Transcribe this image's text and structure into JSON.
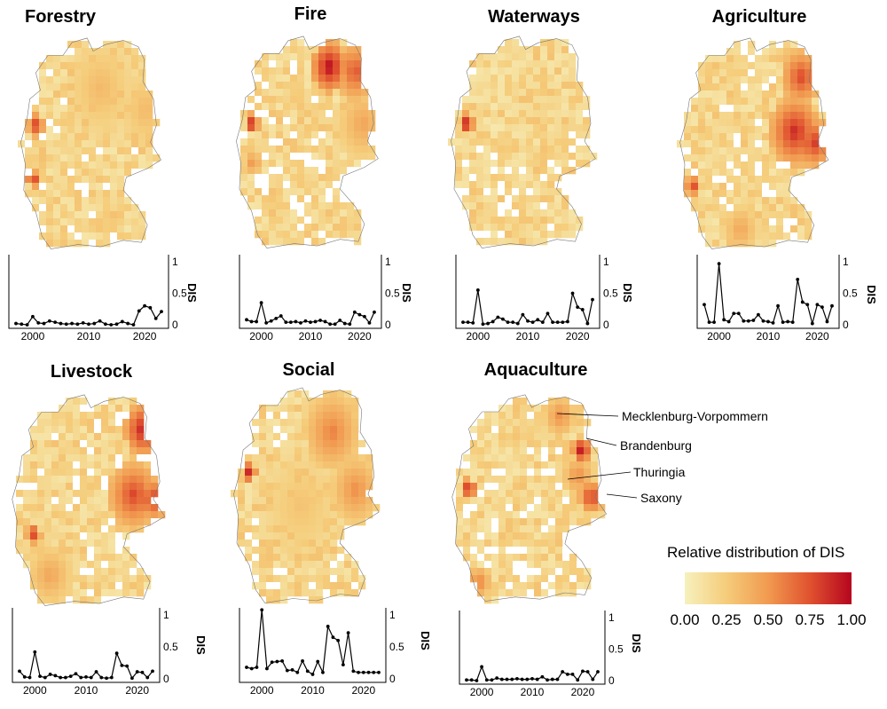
{
  "chart_data": [
    {
      "type": "line",
      "title": "Forestry",
      "ylabel": "DIS",
      "ylim": [
        0,
        1
      ],
      "x": [
        1997,
        1998,
        1999,
        2000,
        2001,
        2002,
        2003,
        2004,
        2005,
        2006,
        2007,
        2008,
        2009,
        2010,
        2011,
        2012,
        2013,
        2014,
        2015,
        2016,
        2017,
        2018,
        2019,
        2020,
        2021,
        2022,
        2023
      ],
      "y": [
        0.02,
        0.01,
        0.0,
        0.13,
        0.03,
        0.02,
        0.06,
        0.04,
        0.02,
        0.01,
        0.02,
        0.01,
        0.03,
        0.01,
        0.02,
        0.06,
        0.01,
        0.0,
        0.01,
        0.05,
        0.02,
        0.0,
        0.22,
        0.3,
        0.27,
        0.1,
        0.21
      ],
      "xticks": [
        "2000",
        "2010",
        "2020"
      ],
      "yticks": [
        "0",
        "0.5",
        "1"
      ]
    },
    {
      "type": "line",
      "title": "Fire",
      "ylabel": "DIS",
      "ylim": [
        0,
        1
      ],
      "x": [
        1997,
        1998,
        1999,
        2000,
        2001,
        2002,
        2003,
        2004,
        2005,
        2006,
        2007,
        2008,
        2009,
        2010,
        2011,
        2012,
        2013,
        2014,
        2015,
        2016,
        2017,
        2018,
        2019,
        2020,
        2021,
        2022,
        2023
      ],
      "y": [
        0.08,
        0.05,
        0.05,
        0.35,
        0.03,
        0.06,
        0.1,
        0.14,
        0.04,
        0.04,
        0.05,
        0.03,
        0.06,
        0.04,
        0.05,
        0.07,
        0.05,
        0.01,
        0.01,
        0.07,
        0.02,
        0.01,
        0.2,
        0.16,
        0.13,
        0.03,
        0.2
      ],
      "xticks": [
        "2000",
        "2010",
        "2020"
      ],
      "yticks": [
        "0",
        "0.5",
        "1"
      ]
    },
    {
      "type": "line",
      "title": "Waterways",
      "ylabel": "DIS",
      "ylim": [
        0,
        1
      ],
      "x": [
        1997,
        1998,
        1999,
        2000,
        2001,
        2002,
        2003,
        2004,
        2005,
        2006,
        2007,
        2008,
        2009,
        2010,
        2011,
        2012,
        2013,
        2014,
        2015,
        2016,
        2017,
        2018,
        2019,
        2020,
        2021,
        2022,
        2023
      ],
      "y": [
        0.04,
        0.04,
        0.03,
        0.55,
        0.01,
        0.02,
        0.05,
        0.12,
        0.09,
        0.04,
        0.04,
        0.02,
        0.16,
        0.06,
        0.04,
        0.08,
        0.04,
        0.18,
        0.04,
        0.04,
        0.04,
        0.05,
        0.5,
        0.28,
        0.24,
        0.02,
        0.4
      ],
      "xticks": [
        "2000",
        "2010",
        "2020"
      ],
      "yticks": [
        "0",
        "0.5",
        "1"
      ]
    },
    {
      "type": "line",
      "title": "Agriculture",
      "ylabel": "DIS",
      "ylim": [
        0,
        1
      ],
      "x": [
        1997,
        1998,
        1999,
        2000,
        2001,
        2002,
        2003,
        2004,
        2005,
        2006,
        2007,
        2008,
        2009,
        2010,
        2011,
        2012,
        2013,
        2014,
        2015,
        2016,
        2017,
        2018,
        2019,
        2020,
        2021,
        2022,
        2023
      ],
      "y": [
        0.32,
        0.04,
        0.04,
        0.97,
        0.08,
        0.05,
        0.18,
        0.18,
        0.06,
        0.06,
        0.07,
        0.16,
        0.06,
        0.05,
        0.03,
        0.3,
        0.04,
        0.05,
        0.04,
        0.72,
        0.36,
        0.32,
        0.02,
        0.32,
        0.28,
        0.05,
        0.3
      ],
      "xticks": [
        "2000",
        "2010",
        "2020"
      ],
      "yticks": [
        "0",
        "0.5",
        "1"
      ]
    },
    {
      "type": "line",
      "title": "Livestock",
      "ylabel": "DIS",
      "ylim": [
        0,
        1
      ],
      "x": [
        1997,
        1998,
        1999,
        2000,
        2001,
        2002,
        2003,
        2004,
        2005,
        2006,
        2007,
        2008,
        2009,
        2010,
        2011,
        2012,
        2013,
        2014,
        2015,
        2016,
        2017,
        2018,
        2019,
        2020,
        2021,
        2022,
        2023
      ],
      "y": [
        0.12,
        0.03,
        0.02,
        0.42,
        0.04,
        0.02,
        0.07,
        0.05,
        0.02,
        0.02,
        0.04,
        0.08,
        0.02,
        0.03,
        0.02,
        0.11,
        0.02,
        0.01,
        0.02,
        0.4,
        0.21,
        0.2,
        0.01,
        0.11,
        0.1,
        0.02,
        0.12
      ],
      "xticks": [
        "2000",
        "2010",
        "2020"
      ],
      "yticks": [
        "0",
        "0.5",
        "1"
      ]
    },
    {
      "type": "line",
      "title": "Social",
      "ylabel": "DIS",
      "ylim": [
        0,
        1
      ],
      "x": [
        1997,
        1998,
        1999,
        2000,
        2001,
        2002,
        2003,
        2004,
        2005,
        2006,
        2007,
        2008,
        2009,
        2010,
        2011,
        2012,
        2013,
        2014,
        2015,
        2016,
        2017,
        2018,
        2019,
        2020,
        2021,
        2022,
        2023
      ],
      "y": [
        0.18,
        0.16,
        0.18,
        1.08,
        0.16,
        0.26,
        0.27,
        0.28,
        0.13,
        0.14,
        0.1,
        0.28,
        0.12,
        0.07,
        0.27,
        0.1,
        0.82,
        0.65,
        0.6,
        0.22,
        0.72,
        0.12,
        0.1,
        0.1,
        0.1,
        0.1,
        0.1
      ],
      "xticks": [
        "2000",
        "2010",
        "2020"
      ],
      "yticks": [
        "0",
        "0.5",
        "1"
      ]
    },
    {
      "type": "line",
      "title": "Aquaculture",
      "ylabel": "DIS",
      "ylim": [
        0,
        1
      ],
      "x": [
        1997,
        1998,
        1999,
        2000,
        2001,
        2002,
        2003,
        2004,
        2005,
        2006,
        2007,
        2008,
        2009,
        2010,
        2011,
        2012,
        2013,
        2014,
        2015,
        2016,
        2017,
        2018,
        2019,
        2020,
        2021,
        2022,
        2023
      ],
      "y": [
        0.01,
        0.01,
        0.0,
        0.22,
        0.01,
        0.01,
        0.04,
        0.02,
        0.02,
        0.02,
        0.03,
        0.02,
        0.02,
        0.03,
        0.02,
        0.06,
        0.01,
        0.02,
        0.02,
        0.14,
        0.1,
        0.1,
        0.01,
        0.15,
        0.14,
        0.02,
        0.14
      ],
      "xticks": [
        "2000",
        "2010",
        "2020"
      ],
      "yticks": [
        "0",
        "0.5",
        "1"
      ]
    }
  ],
  "annotations": [
    "Mecklenburg-Vorpommern",
    "Brandenburg",
    "Thuringia",
    "Saxony"
  ],
  "legend": {
    "title": "Relative distribution of DIS",
    "ticks": [
      "0.00",
      "0.25",
      "0.50",
      "0.75",
      "1.00"
    ],
    "colors": [
      "#f6f1be",
      "#f5cc7a",
      "#f19a50",
      "#e0522f",
      "#b5051f"
    ]
  }
}
